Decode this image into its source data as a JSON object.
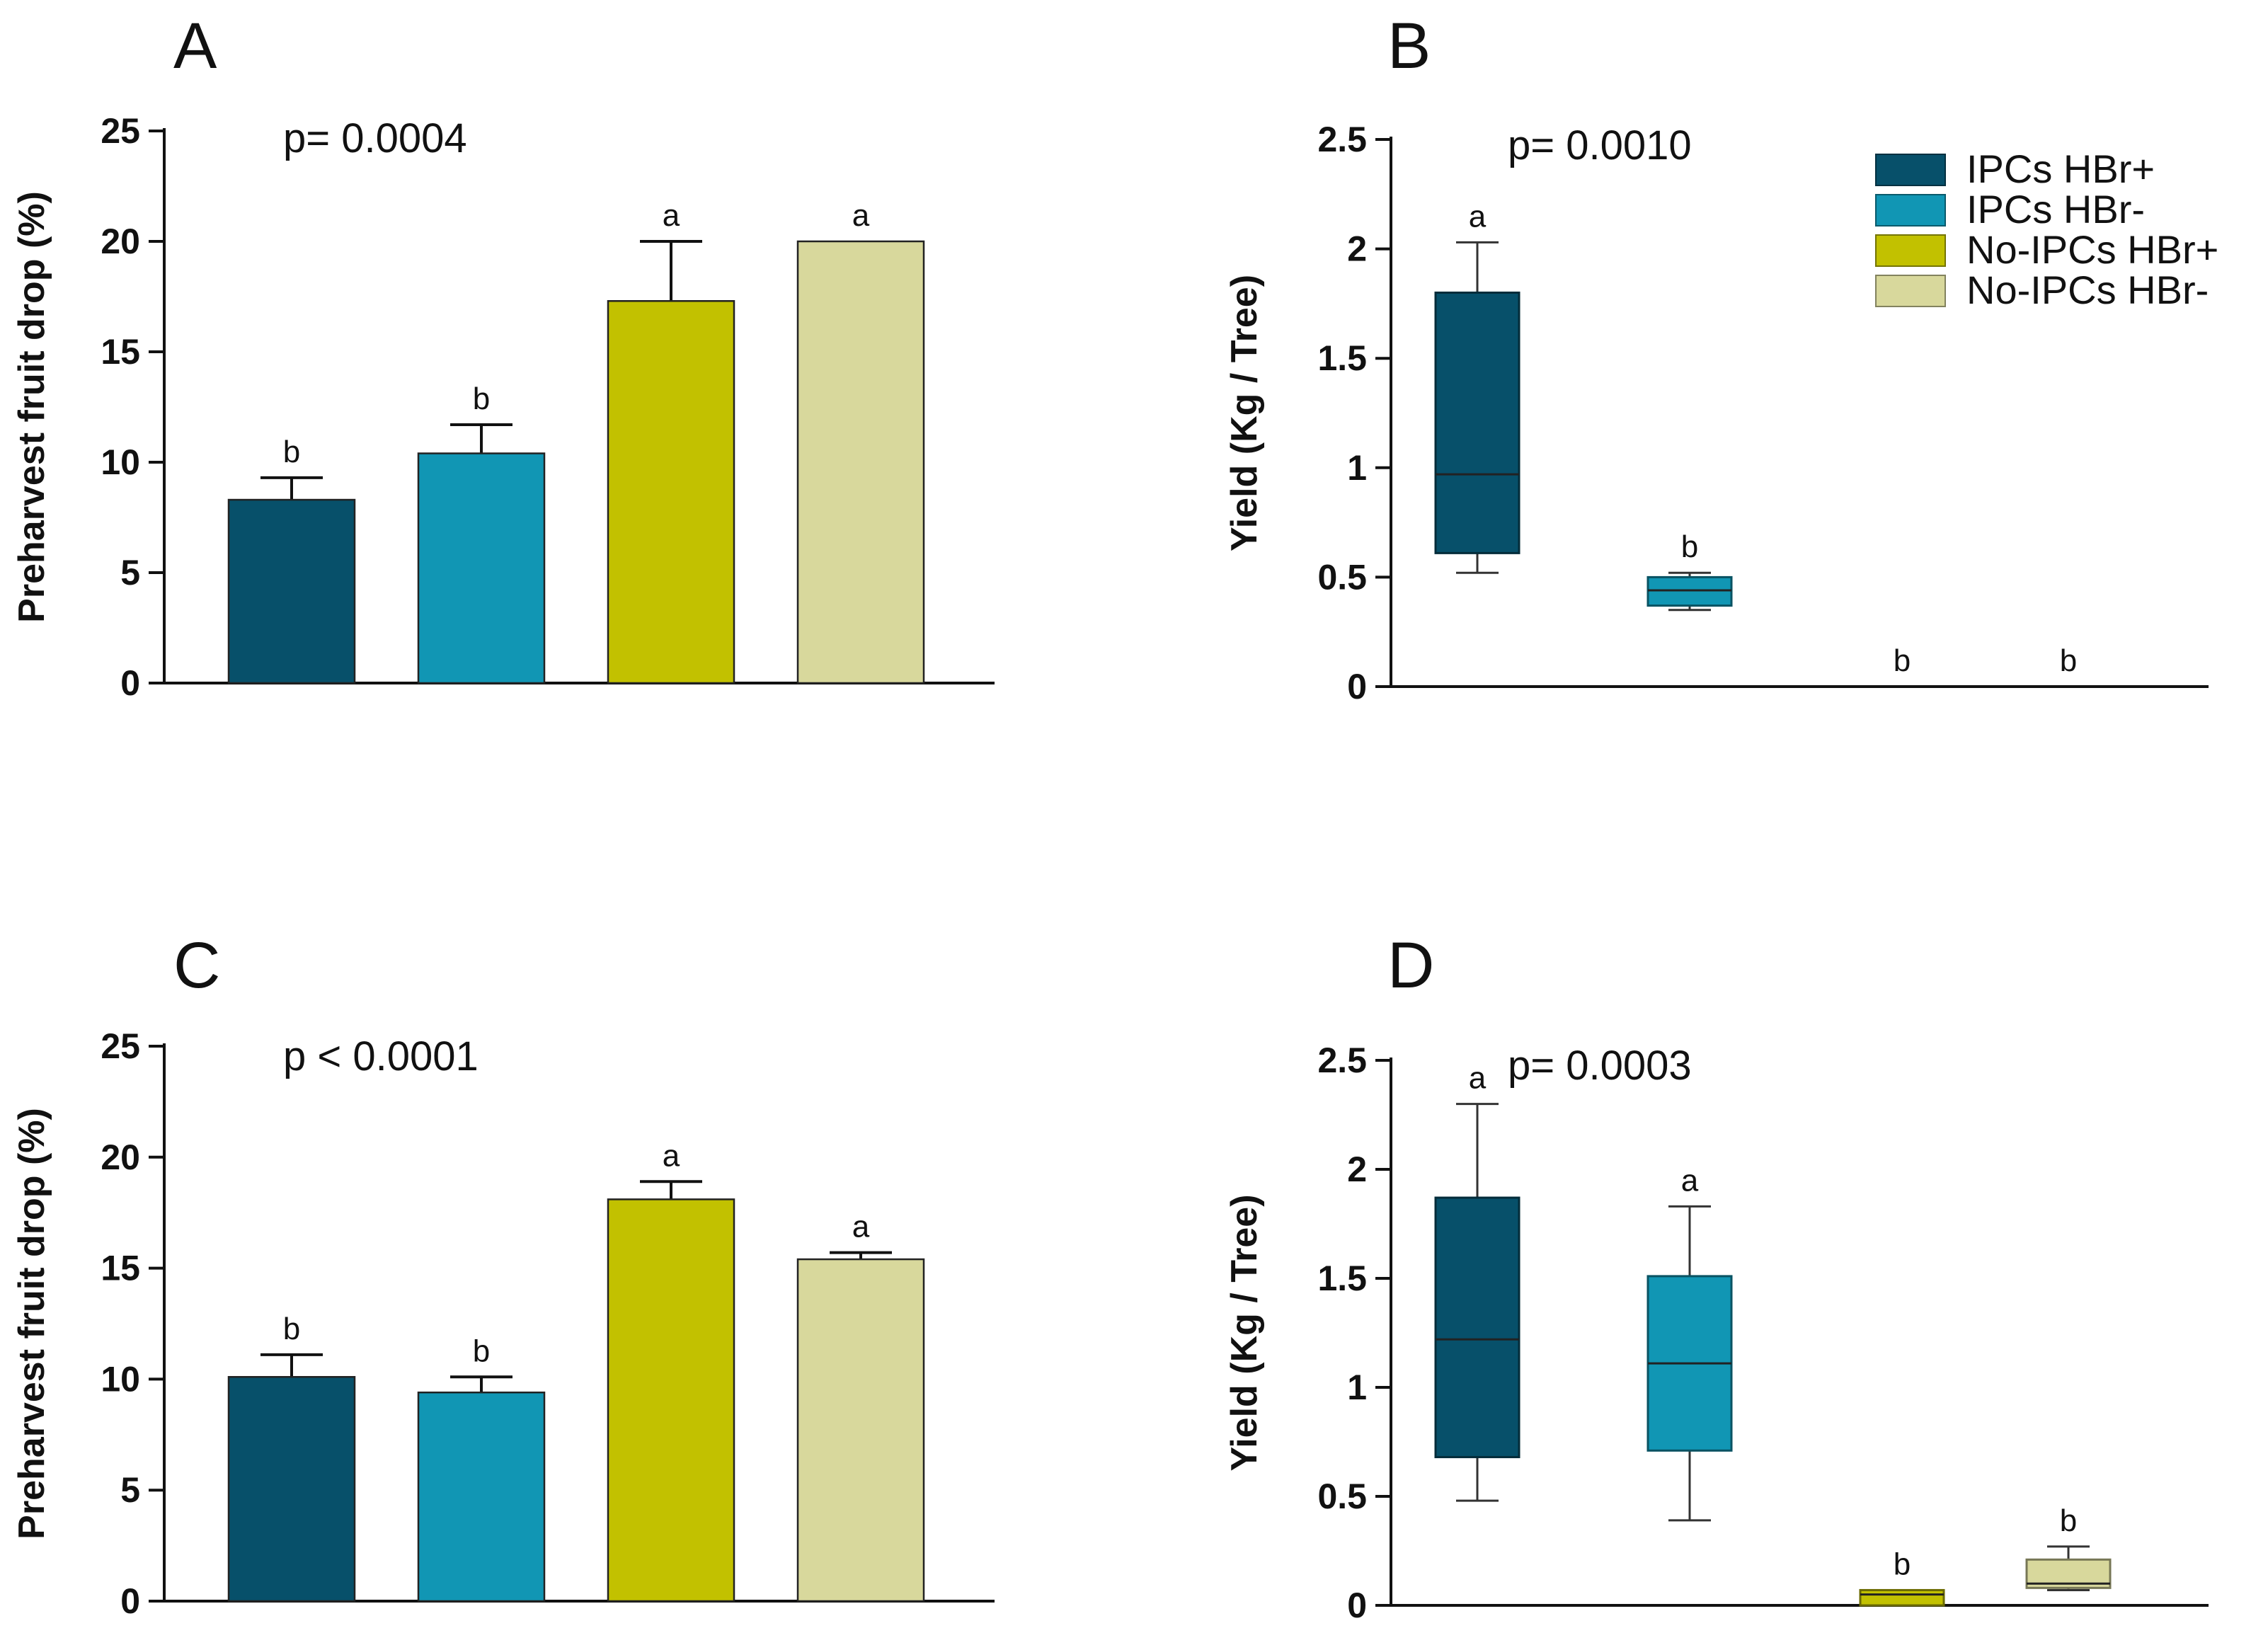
{
  "legend": [
    {
      "label": "IPCs HBr+",
      "color": "#07506a"
    },
    {
      "label": "IPCs HBr-",
      "color": "#1196b4"
    },
    {
      "label": "No-IPCs HBr+",
      "color": "#c2c100"
    },
    {
      "label": "No-IPCs HBr-",
      "color": "#d8d89c"
    }
  ],
  "chart_data": [
    {
      "panel": "A",
      "type": "bar",
      "ptext": "p= 0.0004",
      "ylabel": "Preharvest fruit drop (%)",
      "ylim": [
        0,
        25
      ],
      "yticks": [
        "0",
        "5",
        "10",
        "15",
        "20",
        "25"
      ],
      "series": [
        {
          "name": "IPCs HBr+",
          "value": 8.3,
          "error": 1.0,
          "letter": "b"
        },
        {
          "name": "IPCs HBr-",
          "value": 10.4,
          "error": 1.3,
          "letter": "b"
        },
        {
          "name": "No-IPCs HBr+",
          "value": 17.3,
          "error": 2.7,
          "letter": "a"
        },
        {
          "name": "No-IPCs HBr-",
          "value": 20.0,
          "error": 0,
          "letter": "a"
        }
      ]
    },
    {
      "panel": "B",
      "type": "box",
      "ptext": "p= 0.0010",
      "ylabel": "Yield (Kg / Tree)",
      "ylim": [
        0,
        2.5
      ],
      "yticks": [
        "0",
        "0.5",
        "1",
        "1.5",
        "2",
        "2.5"
      ],
      "series": [
        {
          "name": "IPCs HBr+",
          "min": 0.52,
          "q1": 0.61,
          "median": 0.97,
          "q3": 1.8,
          "max": 2.03,
          "letter": "a"
        },
        {
          "name": "IPCs HBr-",
          "min": 0.35,
          "q1": 0.37,
          "median": 0.44,
          "q3": 0.5,
          "max": 0.52,
          "letter": "b"
        },
        {
          "name": "No-IPCs HBr+",
          "min": 0,
          "q1": 0,
          "median": 0,
          "q3": 0,
          "max": 0,
          "letter": "b"
        },
        {
          "name": "No-IPCs HBr-",
          "min": 0,
          "q1": 0,
          "median": 0,
          "q3": 0,
          "max": 0,
          "letter": "b"
        }
      ]
    },
    {
      "panel": "C",
      "type": "bar",
      "ptext": "p <  0.0001",
      "ylabel": "Preharvest fruit drop (%)",
      "ylim": [
        0,
        25
      ],
      "yticks": [
        "0",
        "5",
        "10",
        "15",
        "20",
        "25"
      ],
      "series": [
        {
          "name": "IPCs HBr+",
          "value": 10.1,
          "error": 1.0,
          "letter": "b"
        },
        {
          "name": "IPCs HBr-",
          "value": 9.4,
          "error": 0.7,
          "letter": "b"
        },
        {
          "name": "No-IPCs HBr+",
          "value": 18.1,
          "error": 0.8,
          "letter": "a"
        },
        {
          "name": "No-IPCs HBr-",
          "value": 15.4,
          "error": 0.3,
          "letter": "a"
        }
      ]
    },
    {
      "panel": "D",
      "type": "box",
      "ptext": "p= 0.0003",
      "ylabel": "Yield (Kg / Tree)",
      "ylim": [
        0,
        2.5
      ],
      "yticks": [
        "0",
        "0.5",
        "1",
        "1.5",
        "2",
        "2.5"
      ],
      "series": [
        {
          "name": "IPCs HBr+",
          "min": 0.48,
          "q1": 0.68,
          "median": 1.22,
          "q3": 1.87,
          "max": 2.3,
          "letter": "a"
        },
        {
          "name": "IPCs HBr-",
          "min": 0.39,
          "q1": 0.71,
          "median": 1.11,
          "q3": 1.51,
          "max": 1.83,
          "letter": "a"
        },
        {
          "name": "No-IPCs HBr+",
          "min": 0,
          "q1": 0,
          "median": 0.05,
          "q3": 0.07,
          "max": 0.07,
          "letter": "b"
        },
        {
          "name": "No-IPCs HBr-",
          "min": 0.07,
          "q1": 0.08,
          "median": 0.1,
          "q3": 0.21,
          "max": 0.27,
          "letter": "b"
        }
      ]
    }
  ]
}
